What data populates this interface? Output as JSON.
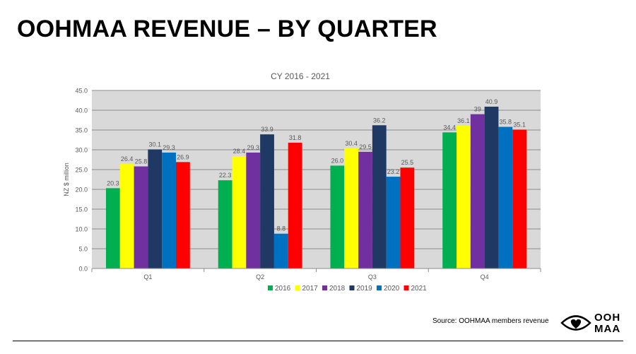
{
  "slide": {
    "title": "OOHMAA REVENUE – BY QUARTER",
    "source": "Source: OOHMAA members revenue",
    "logo_line1": "OOH",
    "logo_line2": "MAA"
  },
  "chart_data": {
    "type": "bar",
    "title": "CY 2016 - 2021",
    "xlabel": "",
    "ylabel": "NZ $ million",
    "ylim": [
      0,
      45
    ],
    "ytick_step": 5,
    "ytick_labels": [
      "0.0",
      "5.0",
      "10.0",
      "15.0",
      "20.0",
      "25.0",
      "30.0",
      "35.0",
      "40.0",
      "45.0"
    ],
    "grid": true,
    "legend": "bottom",
    "categories": [
      "Q1",
      "Q2",
      "Q3",
      "Q4"
    ],
    "series": [
      {
        "name": "2016",
        "color": "#00b050",
        "values": [
          20.3,
          22.3,
          26.0,
          34.4
        ],
        "labels": [
          "20.3",
          "22.3",
          "26.0",
          "34.4"
        ]
      },
      {
        "name": "2017",
        "color": "#ffff00",
        "values": [
          26.4,
          28.4,
          30.4,
          36.1
        ],
        "labels": [
          "26.4",
          "28.4",
          "30.4",
          "36.1"
        ]
      },
      {
        "name": "2018",
        "color": "#7030a0",
        "values": [
          25.8,
          29.3,
          29.5,
          39.0
        ],
        "labels": [
          "25.8",
          "29.3",
          "29.5",
          "39"
        ]
      },
      {
        "name": "2019",
        "color": "#1f3864",
        "values": [
          30.1,
          33.9,
          36.2,
          40.9
        ],
        "labels": [
          "30.1",
          "33.9",
          "36.2",
          "40.9"
        ]
      },
      {
        "name": "2020",
        "color": "#0070c0",
        "values": [
          29.3,
          8.8,
          23.2,
          35.8
        ],
        "labels": [
          "29.3",
          "8.8",
          "23.2",
          "35.8"
        ]
      },
      {
        "name": "2021",
        "color": "#ff0000",
        "values": [
          26.9,
          31.8,
          25.5,
          35.1
        ],
        "labels": [
          "26.9",
          "31.8",
          "25.5",
          "35.1"
        ]
      }
    ]
  }
}
